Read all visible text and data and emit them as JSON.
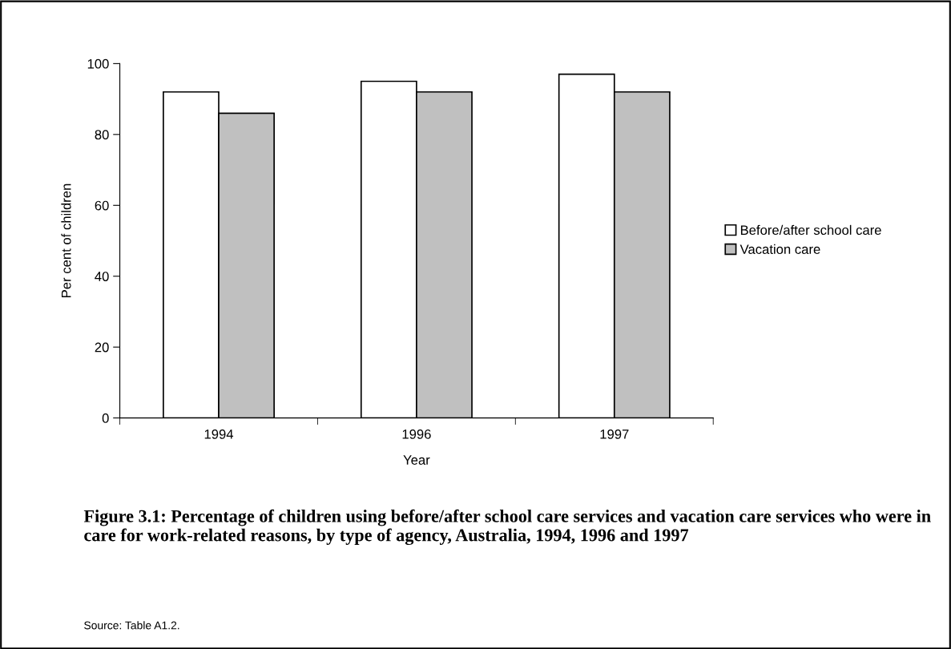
{
  "chart_data": {
    "type": "bar",
    "title": "Figure 3.1: Percentage of children using before/after school care services and vacation care services who were in care for work-related reasons, by type of agency, Australia, 1994, 1996 and 1997",
    "xlabel": "Year",
    "ylabel": "Per cent of children",
    "categories": [
      "1994",
      "1996",
      "1997"
    ],
    "series": [
      {
        "name": "Before/after school care",
        "color": "#ffffff",
        "values": [
          92,
          95,
          97
        ]
      },
      {
        "name": "Vacation care",
        "color": "#c0c0c0",
        "values": [
          86,
          92,
          92
        ]
      }
    ],
    "ylim": [
      0,
      100
    ],
    "yticks": [
      0,
      20,
      40,
      60,
      80,
      100
    ],
    "grid": false,
    "legend": "right",
    "annotations": [
      "Source: Table A1.2."
    ]
  }
}
